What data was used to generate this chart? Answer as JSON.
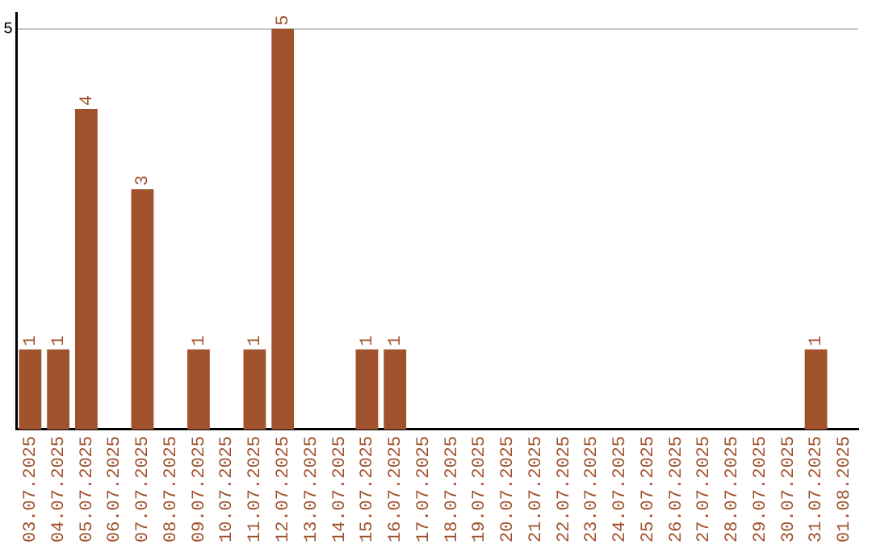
{
  "chart_data": {
    "type": "bar",
    "categories": [
      "03.07.2025",
      "04.07.2025",
      "05.07.2025",
      "06.07.2025",
      "07.07.2025",
      "08.07.2025",
      "09.07.2025",
      "10.07.2025",
      "11.07.2025",
      "12.07.2025",
      "13.07.2025",
      "14.07.2025",
      "15.07.2025",
      "16.07.2025",
      "17.07.2025",
      "18.07.2025",
      "19.07.2025",
      "20.07.2025",
      "21.07.2025",
      "22.07.2025",
      "23.07.2025",
      "24.07.2025",
      "25.07.2025",
      "26.07.2025",
      "27.07.2025",
      "28.07.2025",
      "29.07.2025",
      "30.07.2025",
      "31.07.2025",
      "01.08.2025"
    ],
    "values": [
      1,
      1,
      4,
      0,
      3,
      0,
      1,
      0,
      1,
      5,
      0,
      0,
      1,
      1,
      0,
      0,
      0,
      0,
      0,
      0,
      0,
      0,
      0,
      0,
      0,
      0,
      0,
      0,
      1,
      0
    ],
    "value_labels": [
      "1",
      "1",
      "4",
      null,
      "3",
      null,
      "1",
      null,
      "1",
      "5",
      null,
      null,
      "1",
      "1",
      null,
      null,
      null,
      null,
      null,
      null,
      null,
      null,
      null,
      null,
      null,
      null,
      null,
      null,
      "1",
      null
    ],
    "color": "#a0522d",
    "ylim": [
      0,
      5.2
    ],
    "yticks": [
      5
    ],
    "grid": "y"
  }
}
